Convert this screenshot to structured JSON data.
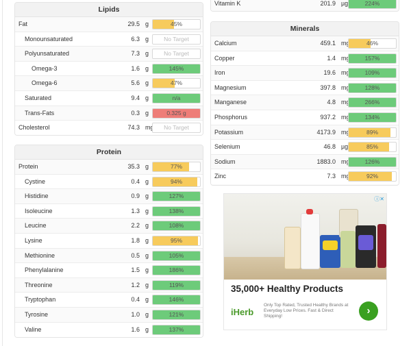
{
  "colors": {
    "yellow": "#f7cb5c",
    "green": "#6dcb7a",
    "red": "#ee7d78"
  },
  "lipids": {
    "title": "Lipids",
    "rows": [
      {
        "name": "Fat",
        "amount": "29.5",
        "unit": "g",
        "label": "45%",
        "pct": 45,
        "status": "yellow",
        "indent": 0
      },
      {
        "name": "Monounsaturated",
        "amount": "6.3",
        "unit": "g",
        "label": "No Target",
        "pct": 0,
        "status": "none",
        "indent": 1
      },
      {
        "name": "Polyunsaturated",
        "amount": "7.3",
        "unit": "g",
        "label": "No Target",
        "pct": 0,
        "status": "none",
        "indent": 1
      },
      {
        "name": "Omega-3",
        "amount": "1.6",
        "unit": "g",
        "label": "145%",
        "pct": 100,
        "status": "green",
        "indent": 2
      },
      {
        "name": "Omega-6",
        "amount": "5.6",
        "unit": "g",
        "label": "47%",
        "pct": 47,
        "status": "yellow",
        "indent": 2
      },
      {
        "name": "Saturated",
        "amount": "9.4",
        "unit": "g",
        "label": "n/a",
        "pct": 100,
        "status": "green",
        "indent": 1
      },
      {
        "name": "Trans-Fats",
        "amount": "0.3",
        "unit": "g",
        "label": "0.325 g",
        "pct": 100,
        "status": "red",
        "indent": 1
      },
      {
        "name": "Cholesterol",
        "amount": "74.3",
        "unit": "mg",
        "label": "No Target",
        "pct": 0,
        "status": "none",
        "indent": 0
      }
    ]
  },
  "protein": {
    "title": "Protein",
    "rows": [
      {
        "name": "Protein",
        "amount": "35.3",
        "unit": "g",
        "label": "77%",
        "pct": 77,
        "status": "yellow",
        "indent": 0
      },
      {
        "name": "Cystine",
        "amount": "0.4",
        "unit": "g",
        "label": "94%",
        "pct": 94,
        "status": "yellow",
        "indent": 1
      },
      {
        "name": "Histidine",
        "amount": "0.9",
        "unit": "g",
        "label": "127%",
        "pct": 100,
        "status": "green",
        "indent": 1
      },
      {
        "name": "Isoleucine",
        "amount": "1.3",
        "unit": "g",
        "label": "138%",
        "pct": 100,
        "status": "green",
        "indent": 1
      },
      {
        "name": "Leucine",
        "amount": "2.2",
        "unit": "g",
        "label": "108%",
        "pct": 100,
        "status": "green",
        "indent": 1
      },
      {
        "name": "Lysine",
        "amount": "1.8",
        "unit": "g",
        "label": "95%",
        "pct": 95,
        "status": "yellow",
        "indent": 1
      },
      {
        "name": "Methionine",
        "amount": "0.5",
        "unit": "g",
        "label": "105%",
        "pct": 100,
        "status": "green",
        "indent": 1
      },
      {
        "name": "Phenylalanine",
        "amount": "1.5",
        "unit": "g",
        "label": "186%",
        "pct": 100,
        "status": "green",
        "indent": 1
      },
      {
        "name": "Threonine",
        "amount": "1.2",
        "unit": "g",
        "label": "119%",
        "pct": 100,
        "status": "green",
        "indent": 1
      },
      {
        "name": "Tryptophan",
        "amount": "0.4",
        "unit": "g",
        "label": "146%",
        "pct": 100,
        "status": "green",
        "indent": 1
      },
      {
        "name": "Tyrosine",
        "amount": "1.0",
        "unit": "g",
        "label": "121%",
        "pct": 100,
        "status": "green",
        "indent": 1
      },
      {
        "name": "Valine",
        "amount": "1.6",
        "unit": "g",
        "label": "137%",
        "pct": 100,
        "status": "green",
        "indent": 1
      }
    ]
  },
  "vitamins_tail": {
    "rows": [
      {
        "name": "Vitamin K",
        "amount": "201.9",
        "unit": "µg",
        "label": "224%",
        "pct": 100,
        "status": "green",
        "indent": 0
      }
    ]
  },
  "minerals": {
    "title": "Minerals",
    "rows": [
      {
        "name": "Calcium",
        "amount": "459.1",
        "unit": "mg",
        "label": "46%",
        "pct": 46,
        "status": "yellow",
        "indent": 0
      },
      {
        "name": "Copper",
        "amount": "1.4",
        "unit": "mg",
        "label": "157%",
        "pct": 100,
        "status": "green",
        "indent": 0
      },
      {
        "name": "Iron",
        "amount": "19.6",
        "unit": "mg",
        "label": "109%",
        "pct": 100,
        "status": "green",
        "indent": 0
      },
      {
        "name": "Magnesium",
        "amount": "397.8",
        "unit": "mg",
        "label": "128%",
        "pct": 100,
        "status": "green",
        "indent": 0
      },
      {
        "name": "Manganese",
        "amount": "4.8",
        "unit": "mg",
        "label": "266%",
        "pct": 100,
        "status": "green",
        "indent": 0
      },
      {
        "name": "Phosphorus",
        "amount": "937.2",
        "unit": "mg",
        "label": "134%",
        "pct": 100,
        "status": "green",
        "indent": 0
      },
      {
        "name": "Potassium",
        "amount": "4173.9",
        "unit": "mg",
        "label": "89%",
        "pct": 89,
        "status": "yellow",
        "indent": 0
      },
      {
        "name": "Selenium",
        "amount": "46.8",
        "unit": "µg",
        "label": "85%",
        "pct": 85,
        "status": "yellow",
        "indent": 0
      },
      {
        "name": "Sodium",
        "amount": "1883.0",
        "unit": "mg",
        "label": "126%",
        "pct": 100,
        "status": "green",
        "indent": 0
      },
      {
        "name": "Zinc",
        "amount": "7.3",
        "unit": "mg",
        "label": "92%",
        "pct": 92,
        "status": "yellow",
        "indent": 0
      }
    ]
  },
  "ad": {
    "choices_icon": "ad-choices-icon",
    "close_icon": "close-icon",
    "headline": "35,000+ Healthy Products",
    "logo": "iHerb",
    "body": "Only Top Rated, Trusted Healthy Brands at Everyday Low Prices. Fast & Direct Shipping!",
    "cta_icon": "chevron-right-icon"
  }
}
